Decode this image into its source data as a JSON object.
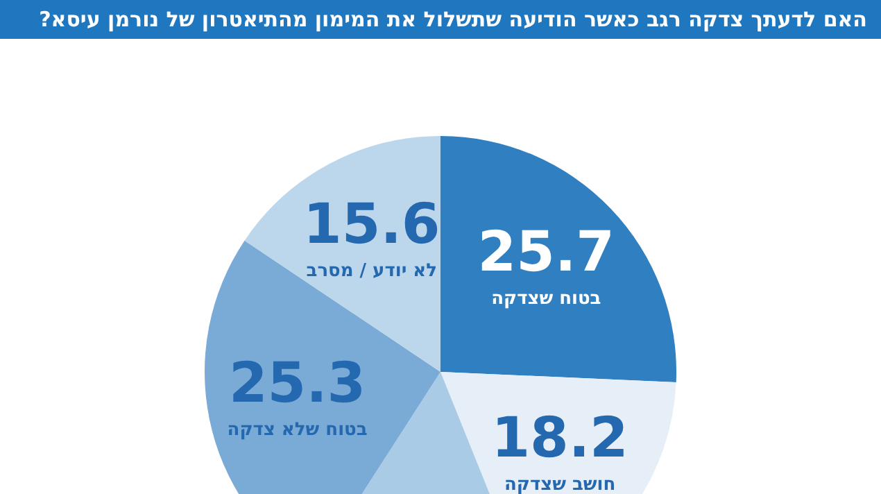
{
  "chart_data": {
    "type": "pie",
    "title": "האם לדעתך צדקה רגב כאשר הודיעה שתשלול את המימון מהתיאטרון של נורמן עיסא?",
    "categories": [
      "בטוח שצדקה",
      "חושב שצדקה",
      null,
      "בטוח שלא צדקה",
      "לא יודע / מסרב"
    ],
    "values": [
      25.7,
      18.2,
      15.2,
      25.3,
      15.6
    ],
    "value_labels": [
      "25.7",
      "18.2",
      null,
      "25.3",
      "15.6"
    ],
    "colors": [
      "#2f7fc1",
      "#e6eff8",
      "#a9cbe6",
      "#7aaad6",
      "#bcd6ec"
    ],
    "legend": false
  }
}
